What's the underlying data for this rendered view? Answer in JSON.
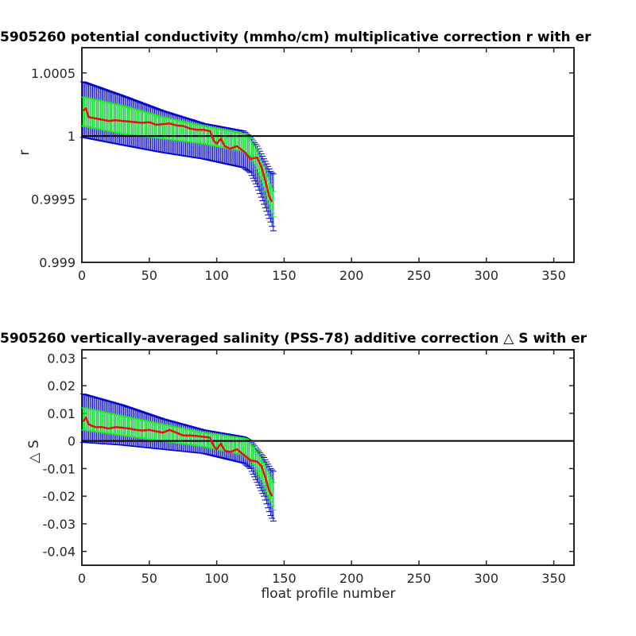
{
  "colors": {
    "mean_line": "#e8120c",
    "inner_error": "#19f023",
    "outer_error": "#0000cc",
    "zero_line": "#000000",
    "axes": "#262626"
  },
  "chart_data": [
    {
      "type": "line",
      "title": "5905260 potential conductivity (mmho/cm) multiplicative correction r with er",
      "xlabel": "",
      "ylabel": "r",
      "xlim": [
        0,
        365
      ],
      "ylim": [
        0.999,
        1.0007
      ],
      "xticks": [
        0,
        50,
        100,
        150,
        200,
        250,
        300,
        350
      ],
      "yticks": [
        0.999,
        0.9995,
        1,
        1.0005
      ],
      "ytick_labels": [
        "0.999",
        "0.9995",
        "1",
        "1.0005"
      ],
      "reference_line": 1,
      "series": [
        {
          "role": "mean",
          "x": [
            1,
            3,
            5,
            10,
            15,
            20,
            25,
            30,
            35,
            40,
            45,
            50,
            55,
            60,
            65,
            70,
            75,
            80,
            85,
            90,
            95,
            98,
            100,
            103,
            106,
            110,
            115,
            120,
            125,
            130,
            133,
            136,
            139,
            141
          ],
          "values": [
            1.0002,
            1.00022,
            1.00015,
            1.00014,
            1.00013,
            1.00012,
            1.000125,
            1.00012,
            1.000115,
            1.00011,
            1.000105,
            1.00011,
            1.00009,
            1.000095,
            1.0001,
            1.000085,
            1.00008,
            1.00006,
            1.00005,
            1.00005,
            1.00004,
            0.99996,
            0.99994,
            0.99998,
            0.99992,
            0.9999,
            0.99992,
            0.99988,
            0.99982,
            0.99983,
            0.99976,
            0.99965,
            0.99952,
            0.99948
          ]
        },
        {
          "role": "inner_error",
          "x": [
            1,
            30,
            60,
            90,
            120,
            125,
            130,
            135,
            140,
            142
          ],
          "upper": [
            1.00031,
            1.00024,
            1.00015,
            1.00008,
            1.00002,
            0.99998,
            0.99988,
            0.99976,
            0.99962,
            0.99956
          ],
          "lower": [
            1.00008,
            1.00002,
            0.99998,
            0.99994,
            0.99988,
            0.99984,
            0.99974,
            0.9996,
            0.99942,
            0.99936
          ]
        },
        {
          "role": "outer_error",
          "x": [
            1,
            30,
            60,
            90,
            120,
            125,
            130,
            135,
            140,
            142
          ],
          "upper": [
            1.00043,
            1.00032,
            1.0002,
            1.0001,
            1.00004,
            0.99999,
            0.99992,
            0.99982,
            0.99972,
            0.9997
          ],
          "lower": [
            0.99999,
            0.99993,
            0.99987,
            0.99982,
            0.99975,
            0.99971,
            0.9996,
            0.99946,
            0.99932,
            0.99925
          ]
        }
      ]
    },
    {
      "type": "line",
      "title": "5905260 vertically-averaged salinity (PSS-78) additive correction △ S with er",
      "xlabel": "float profile number",
      "ylabel": "△ S",
      "xlim": [
        0,
        365
      ],
      "ylim": [
        -0.045,
        0.033
      ],
      "xticks": [
        0,
        50,
        100,
        150,
        200,
        250,
        300,
        350
      ],
      "yticks": [
        -0.04,
        -0.03,
        -0.02,
        -0.01,
        0,
        0.01,
        0.02,
        0.03
      ],
      "ytick_labels": [
        "-0.04",
        "-0.03",
        "-0.02",
        "-0.01",
        "0",
        "0.01",
        "0.02",
        "0.03"
      ],
      "reference_line": 0,
      "series": [
        {
          "role": "mean",
          "x": [
            1,
            3,
            5,
            10,
            15,
            20,
            25,
            30,
            35,
            40,
            45,
            50,
            55,
            60,
            65,
            70,
            75,
            80,
            85,
            90,
            95,
            98,
            100,
            103,
            106,
            110,
            115,
            120,
            125,
            130,
            133,
            136,
            139,
            141
          ],
          "values": [
            0.007,
            0.0085,
            0.006,
            0.005,
            0.005,
            0.0045,
            0.005,
            0.0048,
            0.0045,
            0.004,
            0.0038,
            0.004,
            0.0035,
            0.003,
            0.004,
            0.003,
            0.002,
            0.002,
            0.0018,
            0.0015,
            0.0012,
            -0.002,
            -0.003,
            -0.001,
            -0.0035,
            -0.004,
            -0.003,
            -0.005,
            -0.007,
            -0.0075,
            -0.009,
            -0.013,
            -0.018,
            -0.02
          ]
        },
        {
          "role": "inner_error",
          "x": [
            1,
            30,
            60,
            90,
            120,
            125,
            130,
            135,
            140,
            142
          ],
          "upper": [
            0.012,
            0.009,
            0.006,
            0.003,
            0.001,
            0.0,
            -0.004,
            -0.008,
            -0.013,
            -0.015
          ],
          "lower": [
            0.004,
            0.002,
            0.0,
            -0.002,
            -0.005,
            -0.007,
            -0.011,
            -0.016,
            -0.022,
            -0.025
          ]
        },
        {
          "role": "outer_error",
          "x": [
            1,
            30,
            60,
            90,
            120,
            125,
            130,
            135,
            140,
            142
          ],
          "upper": [
            0.017,
            0.013,
            0.008,
            0.004,
            0.0015,
            0.0,
            -0.003,
            -0.006,
            -0.01,
            -0.011
          ],
          "lower": [
            -0.0005,
            -0.0015,
            -0.003,
            -0.0045,
            -0.008,
            -0.01,
            -0.015,
            -0.02,
            -0.027,
            -0.029
          ]
        }
      ]
    }
  ]
}
